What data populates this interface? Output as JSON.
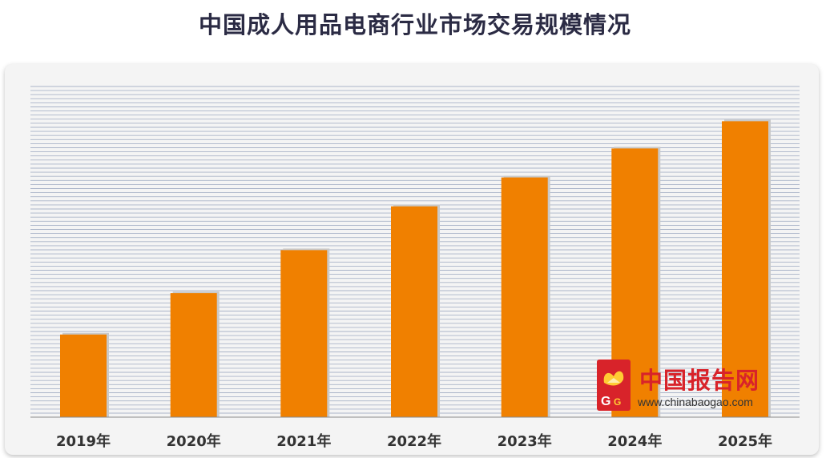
{
  "chart_data": {
    "type": "bar",
    "title": "中国成人用品电商行业市场交易规模情况",
    "categories": [
      "2019年",
      "2020年",
      "2021年",
      "2022年",
      "2023年",
      "2024年",
      "2025年"
    ],
    "values": [
      100,
      150,
      202,
      255,
      290,
      325,
      358
    ],
    "ylim": [
      0,
      400
    ],
    "grid": true,
    "bar_color": "#f08000"
  },
  "watermark": {
    "name": "中国报告网",
    "url": "www.chinabaogao.com"
  }
}
